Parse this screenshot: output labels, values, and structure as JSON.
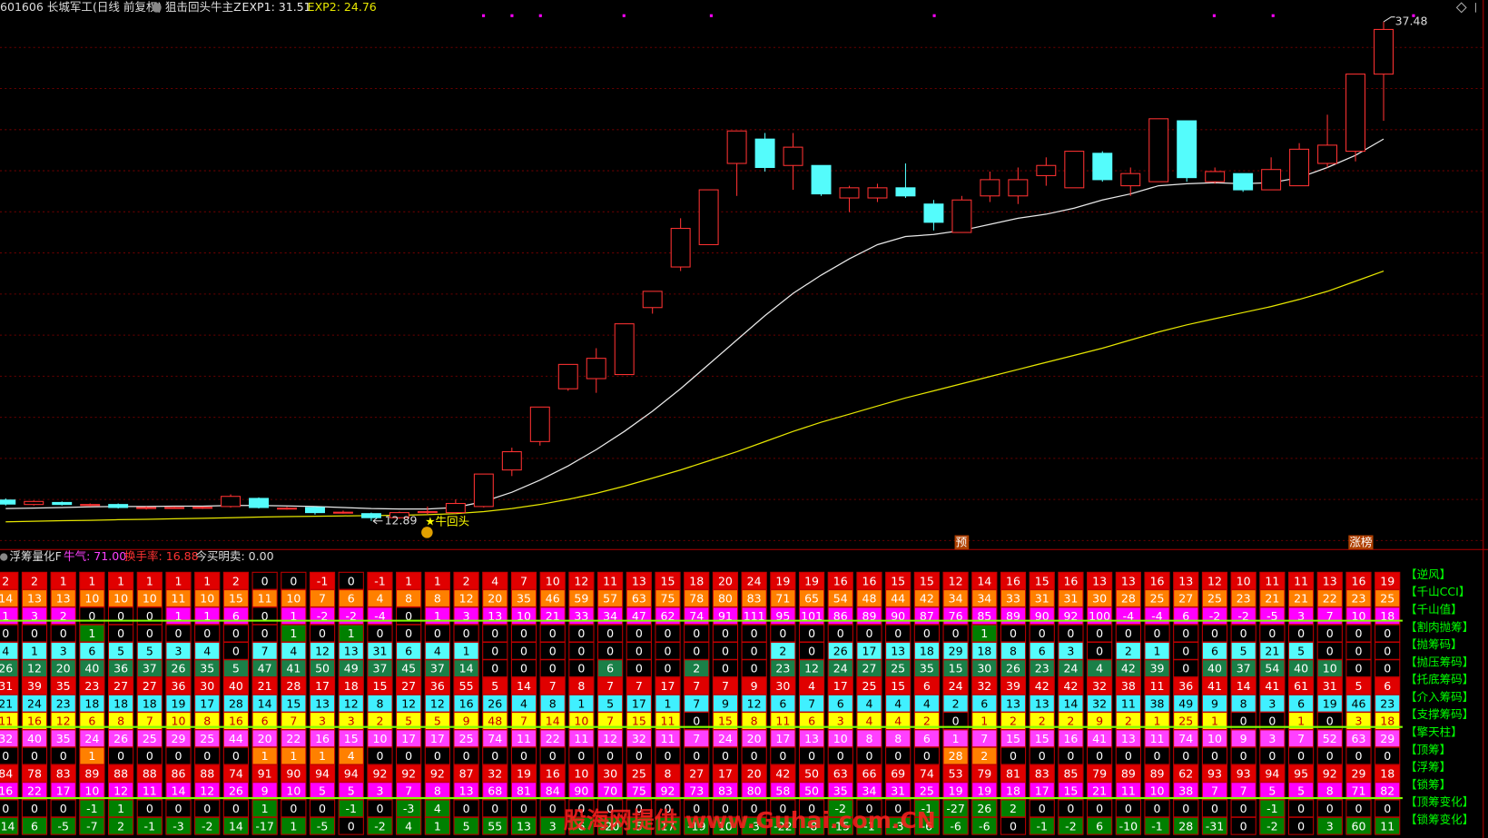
{
  "header": {
    "title": "601606 长城军工(日线 前复权)",
    "indicator": "狙击回头牛主Z",
    "exp1": "EXP1: 31.51",
    "exp2": "EXP2: 24.76"
  },
  "chart_data": {
    "type": "candlestick",
    "open": [
      13.92,
      13.7,
      13.8,
      13.65,
      13.7,
      13.5,
      13.55,
      13.52,
      13.6,
      14.0,
      13.5,
      13.55,
      13.3,
      13.25,
      13.05,
      13.3,
      13.3,
      13.6,
      15.4,
      16.8,
      19.4,
      19.9,
      20.1,
      23.4,
      25.4,
      26.5,
      30.5,
      31.7,
      30.4,
      30.4,
      28.8,
      28.8,
      29.3,
      28.5,
      27.1,
      28.9,
      28.9,
      29.9,
      29.3,
      31.0,
      29.4,
      29.6,
      32.6,
      29.6,
      30.0,
      29.2,
      29.4,
      30.5,
      31.1,
      34.9
    ],
    "high": [
      14.0,
      13.9,
      13.85,
      13.75,
      13.75,
      13.6,
      13.6,
      13.6,
      14.2,
      14.05,
      13.58,
      13.6,
      13.4,
      13.3,
      13.35,
      13.6,
      13.95,
      15.2,
      16.5,
      18.5,
      20.6,
      21.4,
      22.6,
      24.2,
      27.8,
      29.2,
      32.1,
      32.0,
      32.0,
      30.4,
      29.4,
      29.5,
      30.5,
      28.7,
      28.9,
      30.1,
      30.3,
      30.8,
      31.1,
      31.1,
      30.3,
      32.7,
      32.6,
      30.3,
      30.0,
      30.8,
      31.5,
      32.9,
      34.9,
      37.48
    ],
    "low": [
      13.65,
      13.65,
      13.65,
      13.6,
      13.5,
      13.45,
      13.5,
      13.48,
      13.55,
      13.5,
      13.45,
      13.2,
      13.25,
      12.89,
      13.0,
      13.2,
      13.25,
      13.55,
      15.1,
      16.6,
      19.3,
      19.2,
      20.1,
      23.1,
      25.2,
      26.5,
      28.9,
      30.1,
      29.2,
      28.9,
      28.1,
      28.6,
      28.8,
      27.2,
      27.1,
      28.6,
      28.5,
      29.4,
      29.3,
      29.6,
      28.9,
      29.6,
      29.6,
      29.5,
      29.1,
      29.2,
      29.4,
      30.3,
      30.6,
      32.6
    ],
    "close": [
      13.72,
      13.85,
      13.7,
      13.7,
      13.55,
      13.55,
      13.55,
      13.56,
      14.1,
      13.55,
      13.52,
      13.3,
      13.32,
      13.05,
      13.3,
      13.35,
      13.75,
      15.2,
      16.3,
      18.5,
      20.6,
      20.9,
      22.6,
      24.2,
      27.3,
      29.2,
      32.1,
      30.3,
      31.3,
      29.0,
      29.3,
      29.3,
      28.9,
      27.6,
      28.7,
      29.7,
      29.7,
      30.4,
      31.1,
      29.7,
      30.0,
      32.7,
      29.8,
      30.1,
      29.2,
      30.2,
      31.2,
      31.4,
      34.9,
      37.1
    ],
    "up_color": "#ff3232",
    "down_color": "#54fcfc",
    "series": [
      {
        "color": "#e8e8e8",
        "values": [
          13.5,
          13.52,
          13.55,
          13.58,
          13.6,
          13.6,
          13.62,
          13.62,
          13.65,
          13.65,
          13.63,
          13.6,
          13.55,
          13.5,
          13.48,
          13.48,
          13.55,
          13.85,
          14.3,
          14.9,
          15.6,
          16.4,
          17.3,
          18.3,
          19.4,
          20.6,
          21.8,
          23.0,
          24.1,
          25.0,
          25.8,
          26.5,
          26.9,
          27.0,
          27.2,
          27.5,
          27.8,
          28.0,
          28.3,
          28.7,
          29.0,
          29.4,
          29.5,
          29.55,
          29.5,
          29.55,
          29.8,
          30.3,
          30.9,
          31.7
        ]
      },
      {
        "color": "#e6e600",
        "values": [
          12.85,
          12.87,
          12.9,
          12.92,
          12.95,
          12.97,
          13.0,
          13.02,
          13.05,
          13.08,
          13.1,
          13.12,
          13.14,
          13.15,
          13.17,
          13.2,
          13.25,
          13.35,
          13.5,
          13.7,
          13.95,
          14.25,
          14.6,
          15.0,
          15.4,
          15.85,
          16.3,
          16.8,
          17.3,
          17.75,
          18.15,
          18.55,
          18.95,
          19.3,
          19.65,
          20.0,
          20.35,
          20.7,
          21.05,
          21.4,
          21.8,
          22.2,
          22.55,
          22.85,
          23.15,
          23.45,
          23.8,
          24.2,
          24.7,
          25.2
        ]
      }
    ],
    "ylim": [
      11.53,
      38.55
    ],
    "max_label": 37.48,
    "min_label": 12.89,
    "signal": "★牛回头",
    "flag1": "预",
    "flag2": "涨榜"
  },
  "panel": {
    "title": "浮筹量化F",
    "niuqi": "牛气: 71.00",
    "turnover": "换手率: 16.88",
    "trade": "今买明卖: 0.00"
  },
  "table": {
    "rows": [
      {
        "label": "【逆风】",
        "color": "#e00000",
        "text_color": "#ffffff",
        "values": [
          2,
          2,
          1,
          1,
          1,
          1,
          1,
          1,
          2,
          0,
          0,
          -1,
          0,
          -1,
          1,
          1,
          2,
          4,
          7,
          10,
          12,
          11,
          13,
          15,
          18,
          20,
          24,
          19,
          19,
          16,
          16,
          15,
          15,
          12,
          14,
          16,
          15,
          16,
          13,
          13,
          16,
          13,
          12,
          10,
          11,
          11,
          13,
          16,
          19
        ]
      },
      {
        "label": "【千山CCI】",
        "color": "#ff8000",
        "text_color": "#ffffff",
        "values": [
          14,
          13,
          13,
          10,
          10,
          10,
          11,
          10,
          15,
          11,
          10,
          7,
          6,
          4,
          8,
          8,
          12,
          20,
          35,
          46,
          59,
          57,
          63,
          75,
          78,
          80,
          83,
          71,
          65,
          54,
          48,
          44,
          42,
          34,
          34,
          33,
          31,
          31,
          30,
          28,
          25,
          27,
          25,
          23,
          21,
          21,
          22,
          23,
          25
        ]
      },
      {
        "label": "【千山值】",
        "color": "#ff00ff",
        "text_color": "#ffffff",
        "values": [
          1,
          3,
          2,
          0,
          0,
          0,
          1,
          1,
          6,
          0,
          1,
          -2,
          -2,
          -4,
          0,
          1,
          3,
          13,
          10,
          21,
          33,
          34,
          47,
          62,
          74,
          91,
          111,
          95,
          101,
          86,
          89,
          90,
          87,
          76,
          85,
          89,
          90,
          92,
          100,
          -4,
          -4,
          6,
          -2,
          -2,
          -5,
          3,
          7,
          10,
          18
        ]
      },
      {
        "label": "【割肉抛筹】",
        "color": "#008000",
        "text_color": "#ffffff",
        "values": [
          0,
          0,
          0,
          1,
          0,
          0,
          0,
          0,
          0,
          0,
          1,
          0,
          1,
          0,
          0,
          0,
          0,
          0,
          0,
          0,
          0,
          0,
          0,
          0,
          0,
          0,
          0,
          0,
          0,
          0,
          0,
          0,
          0,
          0,
          1,
          0,
          0,
          0,
          0,
          0,
          0,
          0,
          0,
          0,
          0,
          0,
          0,
          0,
          0
        ]
      },
      {
        "label": "【抛筹码】",
        "color": "#54fcfc",
        "text_color": "#000000",
        "values": [
          4,
          1,
          3,
          6,
          5,
          5,
          3,
          4,
          0,
          7,
          4,
          12,
          13,
          31,
          6,
          4,
          1,
          0,
          0,
          0,
          0,
          0,
          0,
          0,
          0,
          0,
          0,
          2,
          0,
          26,
          17,
          13,
          18,
          29,
          18,
          8,
          6,
          3,
          0,
          2,
          1,
          0,
          6,
          5,
          21,
          5,
          0,
          0,
          0
        ]
      },
      {
        "label": "【抛压筹码】",
        "color": "#1a8048",
        "text_color": "#ffffff",
        "values": [
          26,
          12,
          20,
          40,
          36,
          37,
          26,
          35,
          5,
          47,
          41,
          50,
          49,
          37,
          45,
          37,
          14,
          0,
          0,
          0,
          0,
          6,
          0,
          0,
          2,
          0,
          0,
          23,
          12,
          24,
          27,
          25,
          35,
          15,
          30,
          26,
          23,
          24,
          4,
          42,
          39,
          0,
          40,
          37,
          54,
          40,
          10,
          0,
          0
        ]
      },
      {
        "label": "【托底筹码】",
        "color": "#e00000",
        "text_color": "#ffffff",
        "values": [
          31,
          39,
          35,
          23,
          27,
          27,
          36,
          30,
          40,
          21,
          28,
          17,
          18,
          15,
          27,
          36,
          55,
          5,
          14,
          7,
          8,
          7,
          7,
          17,
          7,
          7,
          9,
          30,
          4,
          17,
          25,
          15,
          6,
          24,
          32,
          39,
          42,
          42,
          32,
          38,
          11,
          36,
          41,
          14,
          41,
          61,
          31,
          5,
          6
        ]
      },
      {
        "label": "【介入筹码】",
        "color": "#40f0ff",
        "text_color": "#000000",
        "values": [
          21,
          24,
          23,
          18,
          18,
          18,
          19,
          17,
          28,
          14,
          15,
          13,
          12,
          8,
          12,
          12,
          16,
          26,
          4,
          8,
          1,
          5,
          17,
          1,
          7,
          9,
          12,
          6,
          7,
          6,
          4,
          4,
          4,
          2,
          6,
          13,
          13,
          14,
          32,
          11,
          38,
          49,
          9,
          8,
          3,
          6,
          19,
          46,
          23
        ]
      },
      {
        "label": "【支撑筹码】",
        "color": "#ffff00",
        "text_color": "#c00000",
        "values": [
          11,
          16,
          12,
          6,
          8,
          7,
          10,
          8,
          16,
          6,
          7,
          3,
          3,
          2,
          5,
          5,
          9,
          48,
          7,
          14,
          10,
          7,
          15,
          11,
          0,
          15,
          8,
          11,
          6,
          3,
          4,
          4,
          2,
          0,
          1,
          2,
          2,
          2,
          9,
          2,
          1,
          25,
          1,
          0,
          0,
          1,
          0,
          3,
          18
        ]
      },
      {
        "label": "【擎天柱】",
        "color": "#ff40ff",
        "text_color": "#ffffff",
        "values": [
          32,
          40,
          35,
          24,
          26,
          25,
          29,
          25,
          44,
          20,
          22,
          16,
          15,
          10,
          17,
          17,
          25,
          74,
          11,
          22,
          11,
          12,
          32,
          11,
          7,
          24,
          20,
          17,
          13,
          10,
          8,
          8,
          6,
          1,
          7,
          15,
          15,
          16,
          41,
          13,
          11,
          74,
          10,
          9,
          3,
          7,
          52,
          63,
          29
        ]
      },
      {
        "label": "【顶筹】",
        "color": "#ff8000",
        "text_color": "#ffffff",
        "values": [
          0,
          0,
          0,
          1,
          0,
          0,
          0,
          0,
          0,
          1,
          1,
          1,
          4,
          0,
          0,
          0,
          0,
          0,
          0,
          0,
          0,
          0,
          0,
          0,
          0,
          0,
          0,
          0,
          0,
          0,
          0,
          0,
          0,
          28,
          2,
          0,
          0,
          0,
          0,
          0,
          0,
          0,
          0,
          0,
          0,
          0,
          0,
          0,
          0
        ]
      },
      {
        "label": "【浮筹】",
        "color": "#e00000",
        "text_color": "#ffffff",
        "values": [
          84,
          78,
          83,
          89,
          88,
          88,
          86,
          88,
          74,
          91,
          90,
          94,
          94,
          92,
          92,
          92,
          87,
          32,
          19,
          16,
          10,
          30,
          25,
          8,
          27,
          17,
          20,
          42,
          50,
          63,
          66,
          69,
          74,
          53,
          79,
          81,
          83,
          85,
          79,
          89,
          89,
          62,
          93,
          93,
          94,
          95,
          92,
          29,
          18
        ]
      },
      {
        "label": "【锁筹】",
        "color": "#ff00ff",
        "text_color": "#ffffff",
        "values": [
          16,
          22,
          17,
          10,
          12,
          11,
          14,
          12,
          26,
          9,
          10,
          5,
          5,
          3,
          7,
          8,
          13,
          68,
          81,
          84,
          90,
          70,
          75,
          92,
          73,
          83,
          80,
          58,
          50,
          35,
          34,
          31,
          25,
          19,
          19,
          18,
          17,
          15,
          21,
          11,
          10,
          38,
          7,
          7,
          5,
          5,
          8,
          71,
          82
        ]
      },
      {
        "label": "【顶筹变化】",
        "color": "#008000",
        "text_color": "#ffffff",
        "values": [
          0,
          0,
          0,
          -1,
          1,
          0,
          0,
          0,
          0,
          1,
          0,
          0,
          -1,
          0,
          -3,
          4,
          0,
          0,
          0,
          0,
          0,
          0,
          0,
          0,
          0,
          0,
          0,
          0,
          0,
          -2,
          0,
          0,
          -1,
          -27,
          26,
          2,
          0,
          0,
          0,
          0,
          0,
          0,
          0,
          0,
          -1,
          0,
          0,
          0,
          0
        ]
      },
      {
        "label": "【锁筹变化】",
        "color": "#008000",
        "text_color": "#ffffff",
        "values": [
          -14,
          6,
          -5,
          -7,
          2,
          -1,
          -3,
          -2,
          14,
          -17,
          1,
          -5,
          0,
          -2,
          4,
          1,
          5,
          55,
          13,
          3,
          6,
          -20,
          5,
          17,
          -19,
          10,
          -3,
          -22,
          -8,
          -15,
          -1,
          -3,
          -6,
          -6,
          -6,
          0,
          -1,
          -2,
          6,
          -10,
          -1,
          28,
          -31,
          0,
          -2,
          0,
          3,
          60,
          11
        ]
      }
    ]
  },
  "watermark": "股海网提供 www.Guhai.com.CN"
}
